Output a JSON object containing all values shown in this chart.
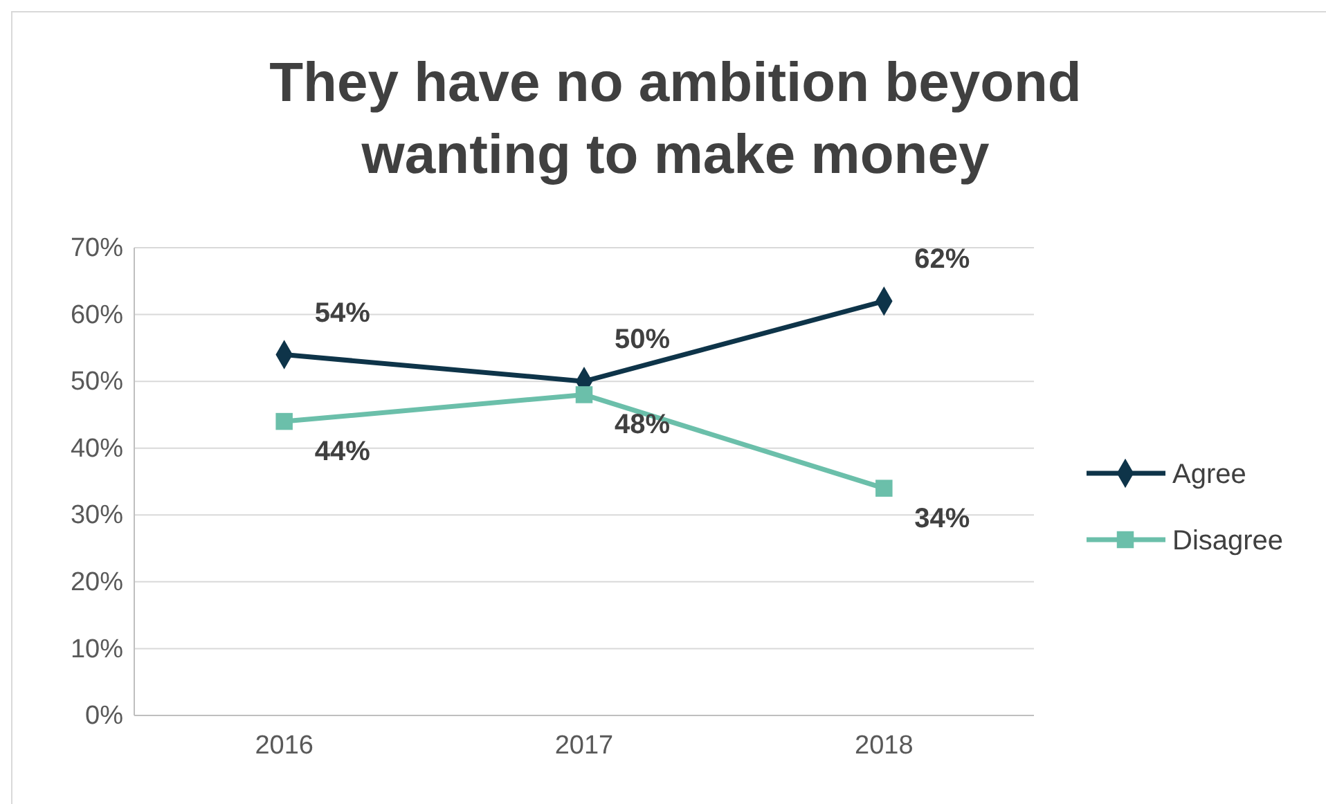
{
  "chart_data": {
    "type": "line",
    "title": "They have no ambition beyond wanting to make money",
    "categories": [
      "2016",
      "2017",
      "2018"
    ],
    "series": [
      {
        "name": "Agree",
        "color": "#0e3449",
        "values": [
          54,
          50,
          62
        ],
        "value_labels": [
          "54%",
          "50%",
          "62%"
        ],
        "marker": "diamond"
      },
      {
        "name": "Disagree",
        "color": "#6bbfaa",
        "values": [
          44,
          48,
          34
        ],
        "value_labels": [
          "44%",
          "48%",
          "34%"
        ],
        "marker": "square"
      }
    ],
    "ylim": [
      0,
      70
    ],
    "yticks": [
      {
        "value": 0,
        "label": "0%"
      },
      {
        "value": 10,
        "label": "10%"
      },
      {
        "value": 20,
        "label": "20%"
      },
      {
        "value": 30,
        "label": "30%"
      },
      {
        "value": 40,
        "label": "40%"
      },
      {
        "value": 50,
        "label": "50%"
      },
      {
        "value": 60,
        "label": "60%"
      },
      {
        "value": 70,
        "label": "70%"
      }
    ],
    "grid": "y",
    "legend": "right"
  }
}
